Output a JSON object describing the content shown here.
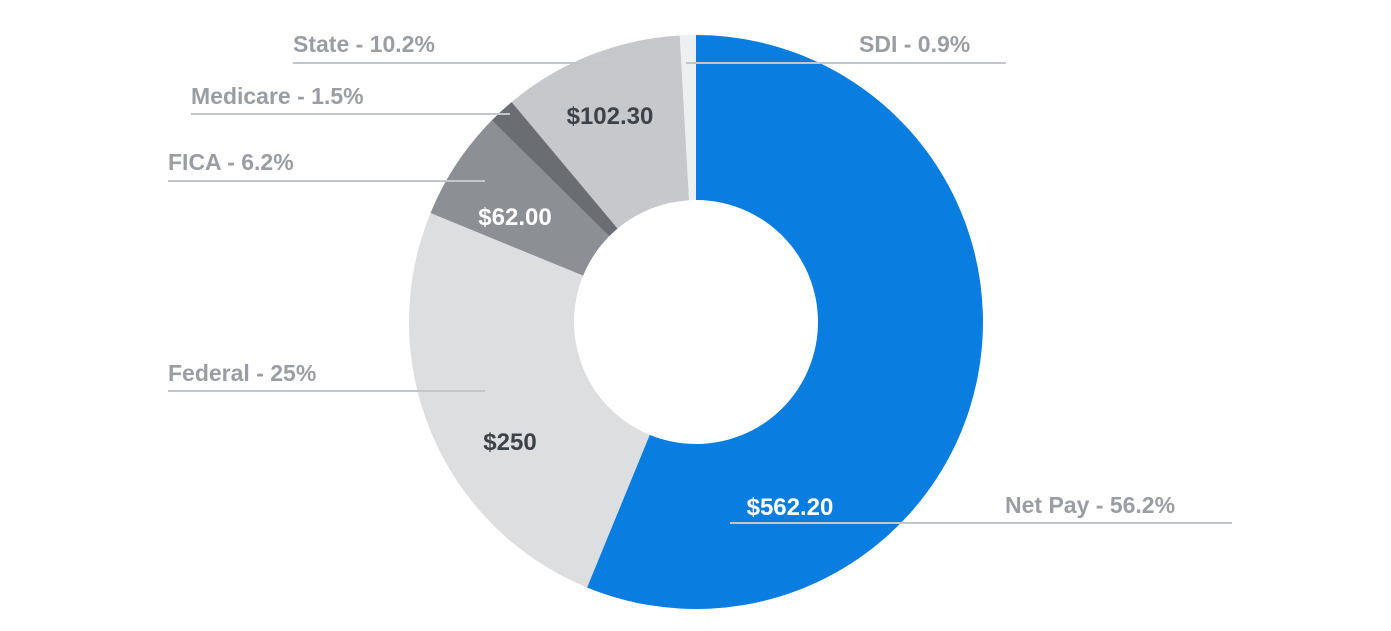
{
  "chart_data": {
    "type": "pie",
    "style": "donut",
    "slices": [
      {
        "name": "Net Pay",
        "percent": 56.2,
        "value": 562.2,
        "label": "Net Pay - 56.2%",
        "value_label": "$562.20",
        "color": "#0a7de0",
        "text_color": "#ffffff"
      },
      {
        "name": "Federal",
        "percent": 25,
        "value": 250,
        "label": "Federal - 25%",
        "value_label": "$250",
        "color": "#dddee0",
        "text_color": "#3d4248"
      },
      {
        "name": "FICA",
        "percent": 6.2,
        "value": 62.0,
        "label": "FICA - 6.2%",
        "value_label": "$62.00",
        "color": "#8c8f93",
        "text_color": "#ffffff"
      },
      {
        "name": "Medicare",
        "percent": 1.5,
        "value": 15.0,
        "label": "Medicare - 1.5%",
        "value_label": "",
        "color": "#6a6e73",
        "text_color": "#ffffff"
      },
      {
        "name": "State",
        "percent": 10.2,
        "value": 102.3,
        "label": "State - 10.2%",
        "value_label": "$102.30",
        "color": "#c6c8cb",
        "text_color": "#3d4248"
      },
      {
        "name": "SDI",
        "percent": 0.9,
        "value": 9.0,
        "label": "SDI - 0.9%",
        "value_label": "",
        "color": "#eeeff0",
        "text_color": "#3d4248"
      }
    ]
  }
}
